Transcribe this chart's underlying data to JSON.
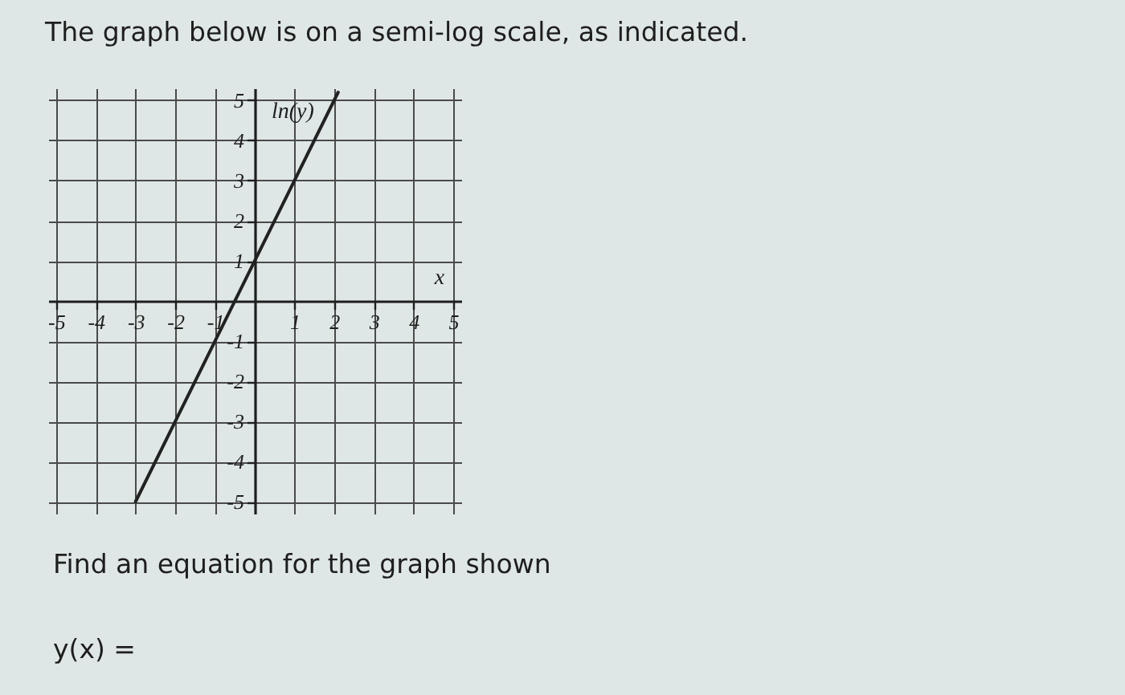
{
  "chart_data": {
    "type": "line",
    "title": "The graph below is on a semi-log scale, as indicated.",
    "xlabel": "x",
    "ylabel": "ln(y)",
    "annotations": [
      "Find an equation for the graph shown",
      "y(x) ="
    ],
    "series": [
      {
        "color": "#222222",
        "x": [
          -3,
          2.1
        ],
        "values": [
          -5,
          5.2
        ]
      }
    ],
    "xlim": [
      -5.2,
      5.2
    ],
    "ylim": [
      -5.3,
      5.3
    ],
    "xticks": [
      -5,
      -4,
      -3,
      -2,
      -1,
      1,
      2,
      3,
      4,
      5
    ],
    "yticks": [
      -5,
      -4,
      -3,
      -2,
      -1,
      1,
      2,
      3,
      4,
      5
    ],
    "grid": true,
    "line_style": "solid"
  }
}
